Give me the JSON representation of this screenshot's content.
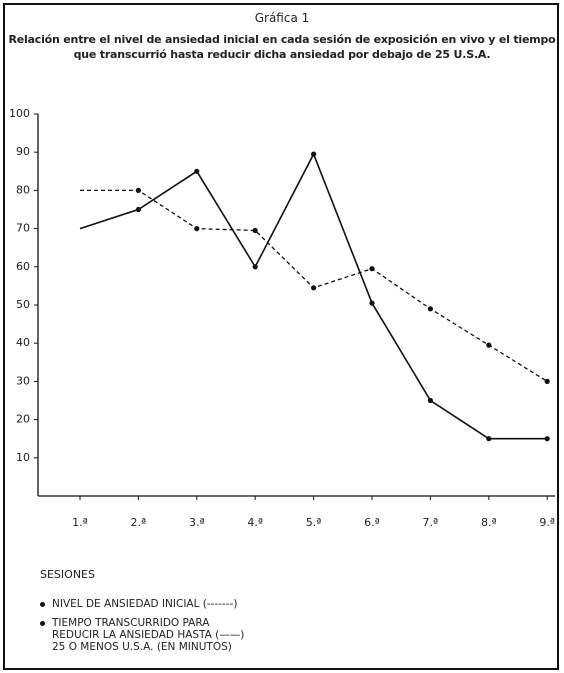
{
  "chart_data": {
    "type": "line",
    "title": "Gráfica 1",
    "subtitle": "Relación entre el nivel de ansiedad inicial en cada sesión de exposición en vivo y el tiempo\nque transcurrió hasta reducir dicha ansiedad por debajo de 25 U.S.A.",
    "x_label": "SESIONES",
    "categories": [
      "1.ª",
      "2.ª",
      "3.ª",
      "4.ª",
      "5.ª",
      "6.ª",
      "7.ª",
      "8.ª",
      "9.ª"
    ],
    "series": [
      {
        "name": "NIVEL DE ANSIEDAD INICIAL (-------)",
        "color": "#111111",
        "style": "dashed",
        "values": [
          80,
          80,
          70,
          69.5,
          54.5,
          59.5,
          49,
          39.5,
          30
        ]
      },
      {
        "name": "TIEMPO TRANSCURRIDO PARA\nREDUCIR LA ANSIEDAD HASTA (——)\n25 O MENOS U.S.A. (EN MINUTOS)",
        "color": "#111111",
        "style": "solid",
        "values": [
          70,
          75,
          85,
          60,
          89.5,
          50.5,
          25,
          15,
          15
        ]
      }
    ],
    "ylim": [
      0,
      100
    ],
    "yticks": [
      10,
      20,
      30,
      40,
      50,
      60,
      70,
      80,
      90,
      100
    ],
    "grid": false,
    "legend": "bottom"
  }
}
